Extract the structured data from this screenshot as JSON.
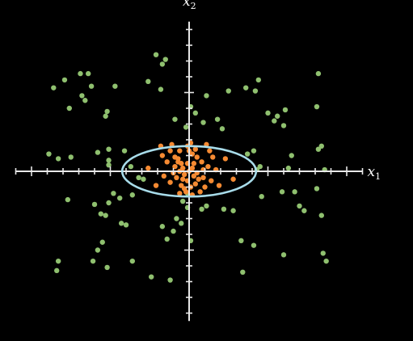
{
  "chart_data": {
    "type": "scatter",
    "xlabel": {
      "main": "x",
      "sub": "1"
    },
    "ylabel": {
      "main": "x",
      "sub": "2"
    },
    "xlim": [
      -11,
      11
    ],
    "ylim": [
      -9.5,
      9.5
    ],
    "grid": false,
    "ellipse": {
      "cx": 0,
      "cy": 0,
      "rx": 4.25,
      "ry": 1.6,
      "color": "#a8dcea"
    },
    "series": [
      {
        "color": "#8fc06f",
        "points": [
          [
            -8.6,
            5.3
          ],
          [
            -7.9,
            5.8
          ],
          [
            -6.9,
            6.2
          ],
          [
            -6.4,
            6.2
          ],
          [
            -6.2,
            5.4
          ],
          [
            -6.8,
            4.8
          ],
          [
            -6.6,
            4.5
          ],
          [
            -7.6,
            4.0
          ],
          [
            -4.7,
            5.4
          ],
          [
            -5.2,
            3.8
          ],
          [
            -5.3,
            3.5
          ],
          [
            -2.6,
            5.7
          ],
          [
            -2.1,
            7.4
          ],
          [
            -1.7,
            6.8
          ],
          [
            -1.5,
            7.1
          ],
          [
            -1.8,
            5.2
          ],
          [
            -0.9,
            3.3
          ],
          [
            2.5,
            5.1
          ],
          [
            1.1,
            4.8
          ],
          [
            0.1,
            4.1
          ],
          [
            0.4,
            3.7
          ],
          [
            -0.2,
            2.8
          ],
          [
            0.9,
            3.1
          ],
          [
            2.1,
            2.7
          ],
          [
            1.8,
            3.3
          ],
          [
            3.6,
            5.3
          ],
          [
            4.2,
            5.1
          ],
          [
            4.4,
            5.8
          ],
          [
            5.0,
            3.7
          ],
          [
            5.6,
            3.5
          ],
          [
            5.4,
            3.2
          ],
          [
            6.1,
            3.9
          ],
          [
            6.0,
            2.9
          ],
          [
            8.1,
            4.1
          ],
          [
            8.2,
            6.2
          ],
          [
            8.4,
            1.6
          ],
          [
            8.2,
            1.4
          ],
          [
            6.5,
            1.0
          ],
          [
            4.1,
            1.3
          ],
          [
            3.7,
            1.1
          ],
          [
            4.5,
            0.3
          ],
          [
            4.3,
            0.1
          ],
          [
            6.3,
            0.2
          ],
          [
            8.6,
            0.1
          ],
          [
            -8.3,
            0.8
          ],
          [
            -8.9,
            1.1
          ],
          [
            -7.5,
            0.9
          ],
          [
            -5.8,
            1.2
          ],
          [
            -5.1,
            1.4
          ],
          [
            -5.1,
            0.7
          ],
          [
            -4.1,
            1.3
          ],
          [
            -5.1,
            0.4
          ],
          [
            -3.7,
            0.3
          ],
          [
            -3.2,
            -0.4
          ],
          [
            -2.9,
            -0.5
          ],
          [
            -3.6,
            -1.5
          ],
          [
            -4.4,
            -1.7
          ],
          [
            -4.8,
            -1.4
          ],
          [
            -5.1,
            -2.0
          ],
          [
            -6.0,
            -2.1
          ],
          [
            -7.7,
            -1.8
          ],
          [
            -5.6,
            -2.7
          ],
          [
            -5.3,
            -2.8
          ],
          [
            -4.3,
            -3.3
          ],
          [
            -4.0,
            -3.4
          ],
          [
            -5.5,
            -4.5
          ],
          [
            -5.8,
            -5.0
          ],
          [
            -6.1,
            -5.7
          ],
          [
            -5.2,
            -6.1
          ],
          [
            -3.6,
            -5.7
          ],
          [
            -8.3,
            -5.7
          ],
          [
            -8.4,
            -6.3
          ],
          [
            -2.4,
            -6.7
          ],
          [
            -1.2,
            -6.9
          ],
          [
            -1.4,
            -4.3
          ],
          [
            -1.0,
            -3.8
          ],
          [
            -1.7,
            -3.5
          ],
          [
            -0.5,
            -3.3
          ],
          [
            -0.8,
            -3.0
          ],
          [
            -0.4,
            -1.9
          ],
          [
            -0.1,
            -1.4
          ],
          [
            -0.1,
            -2.3
          ],
          [
            0.8,
            -2.4
          ],
          [
            1.1,
            -2.2
          ],
          [
            2.2,
            -2.4
          ],
          [
            2.8,
            -2.5
          ],
          [
            3.3,
            -4.4
          ],
          [
            4.1,
            -4.7
          ],
          [
            4.6,
            -1.6
          ],
          [
            5.9,
            -1.3
          ],
          [
            6.7,
            -1.3
          ],
          [
            7.0,
            -2.2
          ],
          [
            7.3,
            -2.5
          ],
          [
            8.1,
            -1.1
          ],
          [
            8.4,
            -2.8
          ],
          [
            8.5,
            -5.2
          ],
          [
            8.7,
            -5.7
          ],
          [
            6.0,
            -5.3
          ],
          [
            3.4,
            -6.4
          ],
          [
            0.1,
            -4.4
          ]
        ]
      },
      {
        "color": "#f58a32",
        "points": [
          [
            -1.8,
            1.6
          ],
          [
            -1.1,
            1.7
          ],
          [
            -1.2,
            1.3
          ],
          [
            -0.9,
            0.9
          ],
          [
            -0.6,
            1.3
          ],
          [
            -0.1,
            1.6
          ],
          [
            0.1,
            1.8
          ],
          [
            1.1,
            1.7
          ],
          [
            1.3,
            1.3
          ],
          [
            0.5,
            0.9
          ],
          [
            0.2,
            1.1
          ],
          [
            -0.5,
            0.5
          ],
          [
            -0.7,
            0.8
          ],
          [
            -1.4,
            0.6
          ],
          [
            -0.9,
            0.3
          ],
          [
            -0.4,
            0.2
          ],
          [
            -0.1,
            0.5
          ],
          [
            0.3,
            0.5
          ],
          [
            0.8,
            0.6
          ],
          [
            1.2,
            0.3
          ],
          [
            -1.0,
            -0.1
          ],
          [
            -0.6,
            0.0
          ],
          [
            -0.3,
            -0.2
          ],
          [
            0.0,
            0.0
          ],
          [
            0.2,
            0.2
          ],
          [
            0.5,
            -0.1
          ],
          [
            0.9,
            0.1
          ],
          [
            -0.8,
            -0.4
          ],
          [
            -0.4,
            -0.5
          ],
          [
            -0.1,
            -0.6
          ],
          [
            0.3,
            -0.3
          ],
          [
            0.6,
            -0.5
          ],
          [
            1.4,
            -0.6
          ],
          [
            -1.2,
            -0.7
          ],
          [
            -0.5,
            -0.9
          ],
          [
            0.1,
            -1.0
          ],
          [
            0.4,
            -0.8
          ],
          [
            1.0,
            -1.0
          ],
          [
            -0.2,
            -1.3
          ],
          [
            0.2,
            -1.5
          ],
          [
            -0.6,
            -1.4
          ],
          [
            2.8,
            -0.5
          ],
          [
            -2.6,
            0.2
          ],
          [
            1.7,
            0.1
          ],
          [
            -1.6,
            -0.3
          ],
          [
            0.7,
            -1.3
          ],
          [
            1.9,
            -0.9
          ],
          [
            -1.7,
            1.0
          ],
          [
            1.5,
            0.9
          ],
          [
            0.0,
            1.3
          ],
          [
            -0.3,
            -1.1
          ],
          [
            0.9,
            -0.4
          ],
          [
            -2.1,
            -0.9
          ],
          [
            2.3,
            0.8
          ],
          [
            -0.7,
            0.6
          ],
          [
            0.4,
            1.4
          ]
        ]
      }
    ]
  }
}
